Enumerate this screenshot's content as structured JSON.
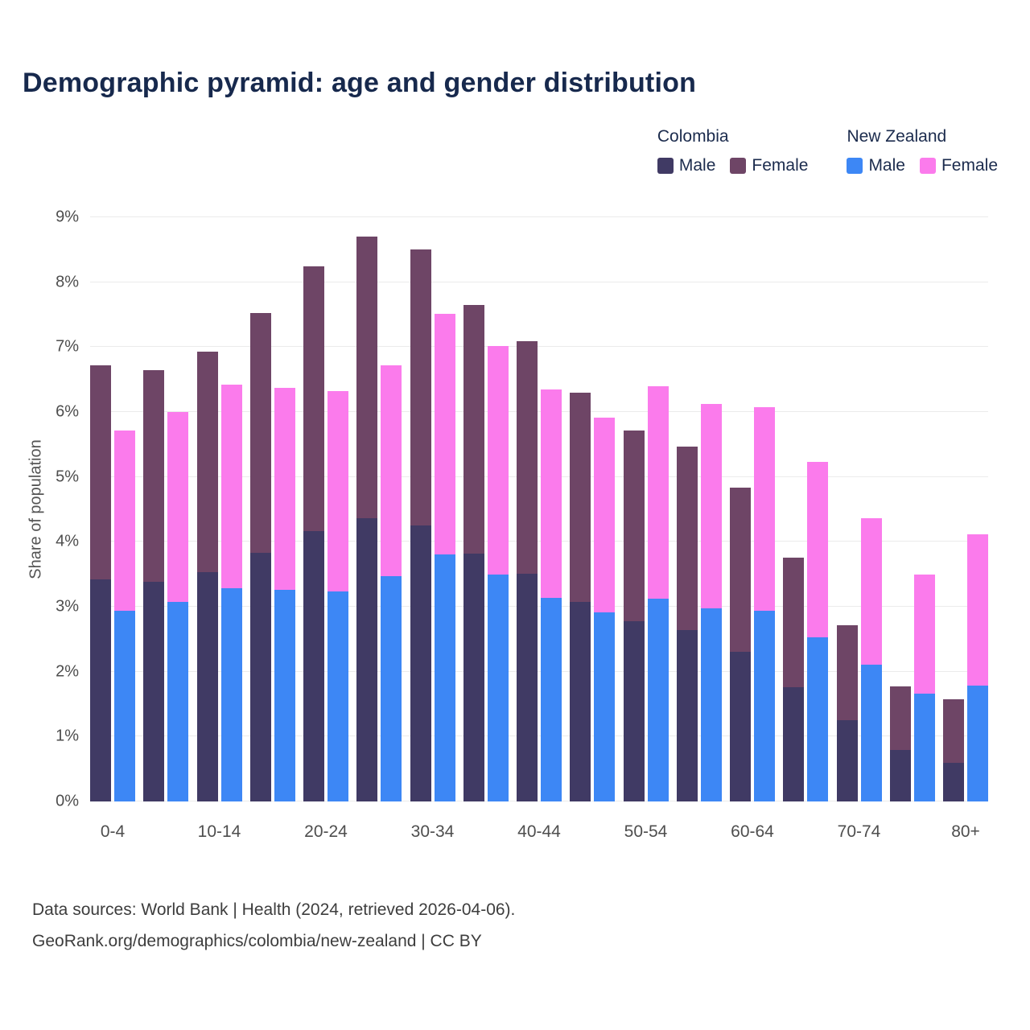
{
  "title": "Demographic pyramid: age and gender distribution",
  "colors": {
    "col_male": "#403a64",
    "col_female": "#6e4566",
    "nz_male": "#3d87f5",
    "nz_female": "#fb7bec",
    "title_text": "#17294d",
    "axis_text": "#4e4e4e",
    "gridline": "#ebebeb"
  },
  "legend": {
    "colombia_label": "Colombia",
    "new_zealand_label": "New Zealand",
    "male_label": "Male",
    "female_label": "Female"
  },
  "chart_data": {
    "type": "bar",
    "stacked": true,
    "title": "Demographic pyramid: age and gender distribution",
    "xlabel": "",
    "ylabel": "Share of population",
    "ylim": [
      0,
      9
    ],
    "yticks": [
      "0%",
      "1%",
      "2%",
      "3%",
      "4%",
      "5%",
      "6%",
      "7%",
      "8%",
      "9%"
    ],
    "grid": true,
    "legend_position": "top-right",
    "categories": [
      "0-4",
      "5-9",
      "10-14",
      "15-19",
      "20-24",
      "25-29",
      "30-34",
      "35-39",
      "40-44",
      "45-49",
      "50-54",
      "55-59",
      "60-64",
      "65-69",
      "70-74",
      "75-79",
      "80+"
    ],
    "x_tick_labels_shown": [
      "0-4",
      "10-14",
      "20-24",
      "30-34",
      "40-44",
      "50-54",
      "60-64",
      "70-74",
      "80+"
    ],
    "series": [
      {
        "name": "Colombia Male",
        "key": "colombia-male",
        "colorKey": "col_male",
        "values": [
          3.42,
          3.39,
          3.53,
          3.83,
          4.17,
          4.36,
          4.25,
          3.82,
          3.51,
          3.07,
          2.78,
          2.64,
          2.3,
          1.76,
          1.25,
          0.79,
          0.6
        ]
      },
      {
        "name": "Colombia Female",
        "key": "colombia-female",
        "colorKey": "col_female",
        "values": [
          3.3,
          3.26,
          3.4,
          3.69,
          4.08,
          4.34,
          4.25,
          3.83,
          3.58,
          3.23,
          2.94,
          2.83,
          2.53,
          2.0,
          1.46,
          0.98,
          0.98
        ]
      },
      {
        "name": "New Zealand Male",
        "key": "nz-male",
        "colorKey": "nz_male",
        "values": [
          2.94,
          3.08,
          3.29,
          3.26,
          3.24,
          3.47,
          3.81,
          3.49,
          3.14,
          2.91,
          3.12,
          2.98,
          2.94,
          2.53,
          2.11,
          1.66,
          1.78
        ]
      },
      {
        "name": "New Zealand Female",
        "key": "nz-female",
        "colorKey": "nz_female",
        "values": [
          2.78,
          2.92,
          3.13,
          3.11,
          3.08,
          3.25,
          3.7,
          3.53,
          3.21,
          3.0,
          3.28,
          3.15,
          3.14,
          2.7,
          2.25,
          1.83,
          2.33
        ]
      }
    ]
  },
  "footer": {
    "line1": "Data sources: World Bank | Health (2024, retrieved 2026-04-06).",
    "line2": "GeoRank.org/demographics/colombia/new-zealand | CC BY"
  }
}
